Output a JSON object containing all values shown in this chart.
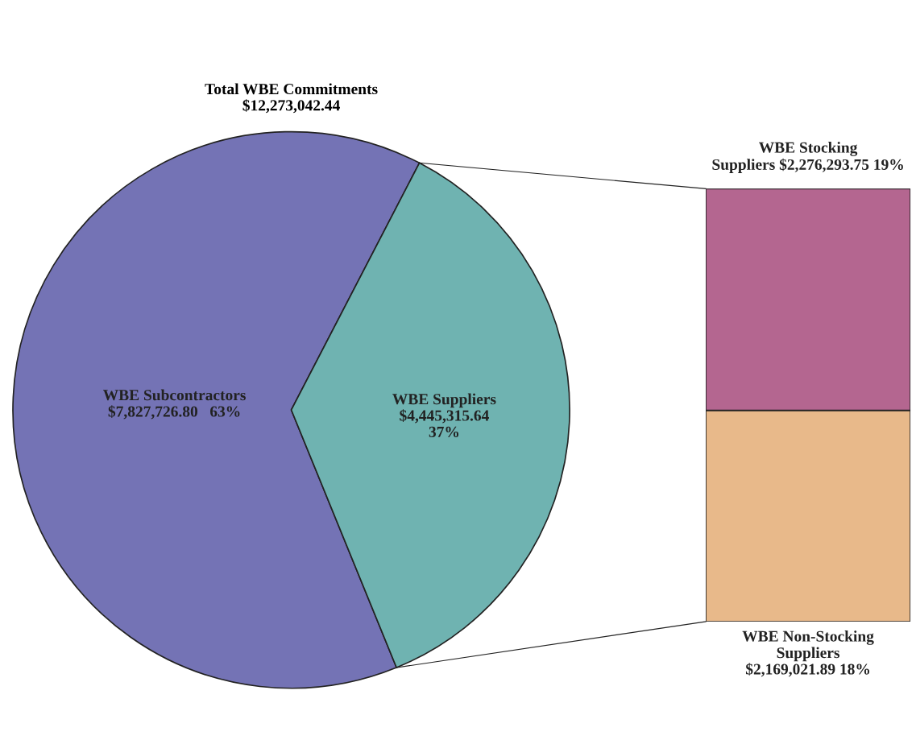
{
  "chart_data": [
    {
      "type": "pie",
      "title": "Total WBE Commitments\n$12,273,042.44",
      "categories": [
        "WBE Subcontractors",
        "WBE Suppliers"
      ],
      "values": [
        7827726.8,
        4445315.64
      ],
      "colors": [
        "#7473b5",
        "#6fb3b1"
      ],
      "value_labels": [
        "$7,827,726.80   63%",
        "$4,445,315.64\n37%"
      ]
    },
    {
      "type": "bar",
      "stacked": true,
      "categories": [
        null
      ],
      "series": [
        {
          "name": "WBE Non-Stocking Suppliers",
          "color": "#e8b98a",
          "values": [
            2169021.89
          ],
          "value_labels": [
            "$2,169,021.89 18%"
          ]
        },
        {
          "name": "WBE Stocking Suppliers",
          "color": "#b46690",
          "values": [
            2276293.75
          ],
          "value_labels": [
            "$2,276,293.75 19%"
          ]
        }
      ]
    }
  ]
}
